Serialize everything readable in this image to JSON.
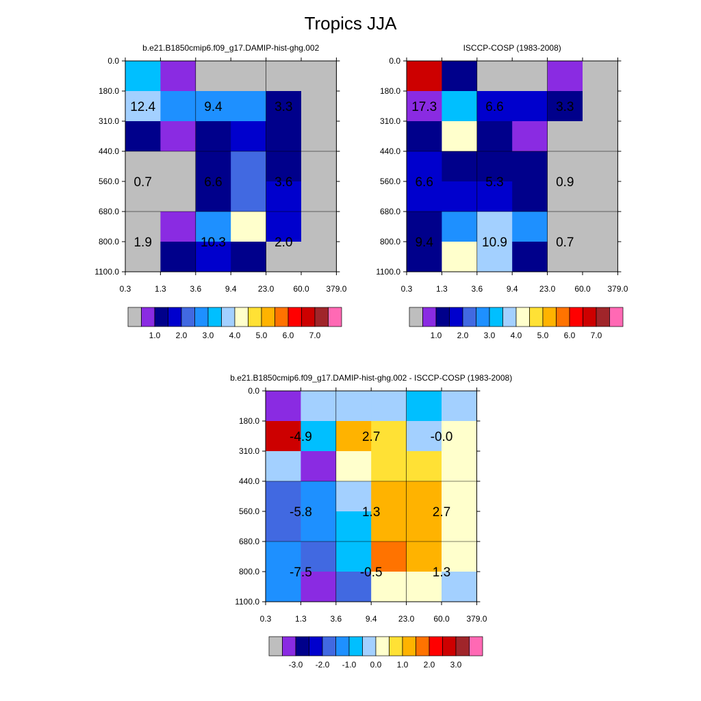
{
  "title": "Tropics JJA",
  "colors": {
    "palette": [
      "#bebebe",
      "#8a2be2",
      "#00008b",
      "#0000cd",
      "#4169e1",
      "#1e90ff",
      "#00bfff",
      "#a3d0ff",
      "#ffffcc",
      "#ffe135",
      "#ffb300",
      "#ff7300",
      "#ff0000",
      "#cd0000",
      "#a0252a",
      "#ff69b4"
    ],
    "grid": "#000000"
  },
  "chart_data": [
    {
      "type": "heatmap",
      "title": "b.e21.B1850cmip6.f09_g17.DAMIP-hist-ghg.002",
      "x_tick_labels": [
        "0.3",
        "1.3",
        "3.6",
        "9.4",
        "23.0",
        "60.0",
        "379.0"
      ],
      "y_tick_labels": [
        "0.0",
        "180.0",
        "310.0",
        "440.0",
        "560.0",
        "680.0",
        "800.0",
        "1100.0"
      ],
      "cell_color_index": [
        [
          6,
          1,
          0,
          0,
          0,
          0
        ],
        [
          7,
          5,
          5,
          5,
          2,
          0
        ],
        [
          2,
          1,
          2,
          3,
          2,
          0
        ],
        [
          0,
          0,
          2,
          4,
          2,
          0
        ],
        [
          0,
          0,
          2,
          4,
          3,
          0
        ],
        [
          0,
          1,
          5,
          8,
          3,
          0
        ],
        [
          0,
          2,
          3,
          2,
          0,
          0
        ]
      ],
      "annotations": [
        {
          "text": "12.4",
          "x": 0.5,
          "y": 1.5
        },
        {
          "text": "9.4",
          "x": 2.5,
          "y": 1.5
        },
        {
          "text": "3.3",
          "x": 4.5,
          "y": 1.5
        },
        {
          "text": "0.7",
          "x": 0.5,
          "y": 4.0
        },
        {
          "text": "6.6",
          "x": 2.5,
          "y": 4.0
        },
        {
          "text": "3.6",
          "x": 4.5,
          "y": 4.0
        },
        {
          "text": "1.9",
          "x": 0.5,
          "y": 6.0
        },
        {
          "text": "10.3",
          "x": 2.5,
          "y": 6.0
        },
        {
          "text": "2.0",
          "x": 4.5,
          "y": 6.0
        }
      ],
      "colorbar": {
        "labels": [
          "1.0",
          "2.0",
          "3.0",
          "4.0",
          "5.0",
          "6.0",
          "7.0"
        ]
      }
    },
    {
      "type": "heatmap",
      "title": "ISCCP-COSP (1983-2008)",
      "x_tick_labels": [
        "0.3",
        "1.3",
        "3.6",
        "9.4",
        "23.0",
        "60.0",
        "379.0"
      ],
      "y_tick_labels": [
        "0.0",
        "180.0",
        "310.0",
        "440.0",
        "560.0",
        "680.0",
        "800.0",
        "1100.0"
      ],
      "cell_color_index": [
        [
          13,
          2,
          0,
          0,
          1,
          0
        ],
        [
          1,
          6,
          3,
          3,
          2,
          0
        ],
        [
          2,
          8,
          2,
          1,
          0,
          0
        ],
        [
          3,
          2,
          2,
          2,
          0,
          0
        ],
        [
          3,
          3,
          3,
          2,
          0,
          0
        ],
        [
          2,
          5,
          7,
          5,
          0,
          0
        ],
        [
          2,
          8,
          7,
          2,
          0,
          0
        ]
      ],
      "annotations": [
        {
          "text": "17.3",
          "x": 0.5,
          "y": 1.5
        },
        {
          "text": "6.6",
          "x": 2.5,
          "y": 1.5
        },
        {
          "text": "3.3",
          "x": 4.5,
          "y": 1.5
        },
        {
          "text": "6.6",
          "x": 0.5,
          "y": 4.0
        },
        {
          "text": "5.3",
          "x": 2.5,
          "y": 4.0
        },
        {
          "text": "0.9",
          "x": 4.5,
          "y": 4.0
        },
        {
          "text": "9.4",
          "x": 0.5,
          "y": 6.0
        },
        {
          "text": "10.9",
          "x": 2.5,
          "y": 6.0
        },
        {
          "text": "0.7",
          "x": 4.5,
          "y": 6.0
        }
      ],
      "colorbar": {
        "labels": [
          "1.0",
          "2.0",
          "3.0",
          "4.0",
          "5.0",
          "6.0",
          "7.0"
        ]
      }
    },
    {
      "type": "heatmap",
      "title": "b.e21.B1850cmip6.f09_g17.DAMIP-hist-ghg.002 - ISCCP-COSP (1983-2008)",
      "x_tick_labels": [
        "0.3",
        "1.3",
        "3.6",
        "9.4",
        "23.0",
        "60.0",
        "379.0"
      ],
      "y_tick_labels": [
        "0.0",
        "180.0",
        "310.0",
        "440.0",
        "560.0",
        "680.0",
        "800.0",
        "1100.0"
      ],
      "cell_color_index": [
        [
          1,
          7,
          7,
          7,
          6,
          7
        ],
        [
          13,
          6,
          10,
          9,
          7,
          8
        ],
        [
          7,
          1,
          8,
          9,
          9,
          8
        ],
        [
          4,
          5,
          7,
          10,
          10,
          8
        ],
        [
          4,
          5,
          6,
          10,
          10,
          8
        ],
        [
          5,
          4,
          6,
          11,
          10,
          8
        ],
        [
          5,
          1,
          4,
          8,
          8,
          7
        ]
      ],
      "annotations": [
        {
          "text": "-4.9",
          "x": 1.0,
          "y": 1.5
        },
        {
          "text": "2.7",
          "x": 3.0,
          "y": 1.5
        },
        {
          "text": "-0.0",
          "x": 5.0,
          "y": 1.5
        },
        {
          "text": "-5.8",
          "x": 1.0,
          "y": 4.0
        },
        {
          "text": "1.3",
          "x": 3.0,
          "y": 4.0
        },
        {
          "text": "2.7",
          "x": 5.0,
          "y": 4.0
        },
        {
          "text": "-7.5",
          "x": 1.0,
          "y": 6.0
        },
        {
          "text": "-0.5",
          "x": 3.0,
          "y": 6.0
        },
        {
          "text": "1.3",
          "x": 5.0,
          "y": 6.0
        }
      ],
      "colorbar": {
        "labels": [
          "-3.0",
          "-2.0",
          "-1.0",
          "0.0",
          "1.0",
          "2.0",
          "3.0"
        ]
      }
    }
  ]
}
